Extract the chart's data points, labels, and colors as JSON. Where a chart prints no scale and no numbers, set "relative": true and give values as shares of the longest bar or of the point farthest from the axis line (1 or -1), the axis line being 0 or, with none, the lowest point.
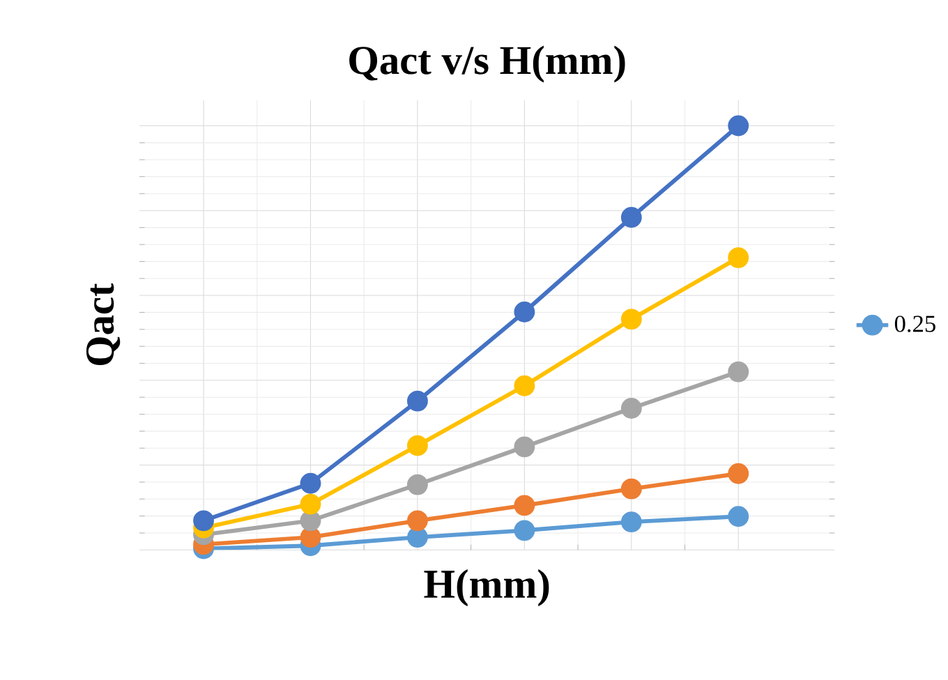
{
  "chart_data": {
    "type": "line",
    "title": "Qact v/s H(mm)",
    "xlabel": "H(mm)",
    "ylabel": "Qact",
    "relative": true,
    "categories": [
      null,
      null,
      null,
      null,
      null,
      null
    ],
    "series": [
      {
        "name": "0.25",
        "color": "#5b9bd5",
        "values": [
          0.003,
          0.01,
          0.03,
          0.046,
          0.066,
          0.079
        ]
      },
      {
        "color": "#ed7d31",
        "values": [
          0.013,
          0.03,
          0.069,
          0.105,
          0.144,
          0.18
        ]
      },
      {
        "color": "#a5a5a5",
        "values": [
          0.036,
          0.069,
          0.154,
          0.243,
          0.334,
          0.42
        ]
      },
      {
        "color": "#ffc000",
        "values": [
          0.052,
          0.108,
          0.246,
          0.387,
          0.544,
          0.689
        ]
      },
      {
        "color": "#4472c4",
        "values": [
          0.069,
          0.157,
          0.351,
          0.561,
          0.784,
          1
        ]
      }
    ],
    "grid": true,
    "legend": "right",
    "marker": "circle",
    "line_style": "solid"
  }
}
